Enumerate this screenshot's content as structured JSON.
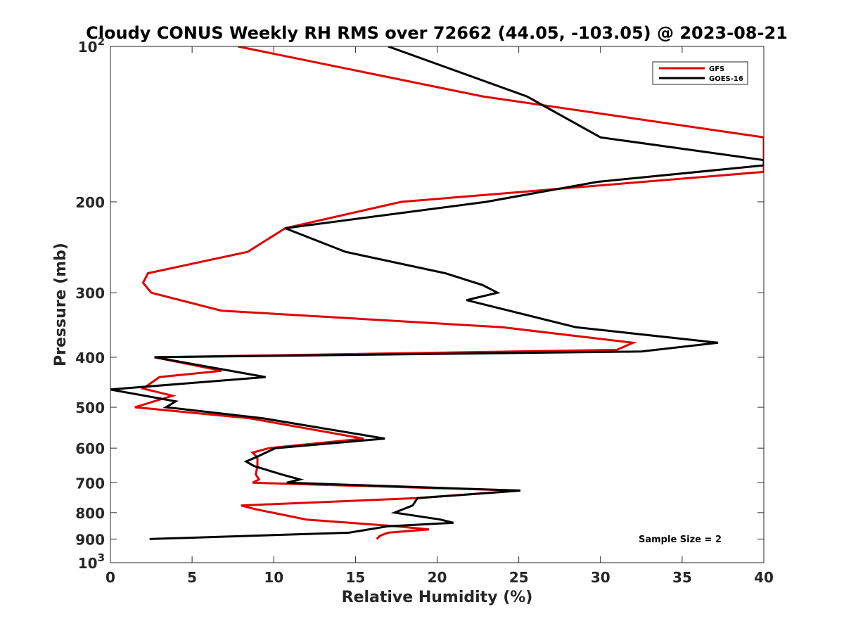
{
  "chart_data": {
    "type": "line",
    "title": "Cloudy CONUS Weekly RH RMS over 72662 (44.05, -103.05) @ 2023-08-21",
    "xlabel": "Relative Humidity (%)",
    "ylabel": "Pressure (mb)",
    "xlim": [
      0,
      40
    ],
    "ylim": [
      100,
      1000
    ],
    "y_scale": "log",
    "y_reversed": true,
    "grid": false,
    "legend_position": "top-right",
    "x_ticks": [
      0,
      5,
      10,
      15,
      20,
      25,
      30,
      35,
      40
    ],
    "x_tick_labels": [
      "0",
      "5",
      "10",
      "15",
      "20",
      "25",
      "30",
      "35",
      "40"
    ],
    "y_ticks": [
      100,
      200,
      300,
      400,
      500,
      600,
      700,
      800,
      900,
      1000
    ],
    "y_tick_labels": [
      {
        "base": "10",
        "exp": "2"
      },
      {
        "base": "200",
        "exp": ""
      },
      {
        "base": "300",
        "exp": ""
      },
      {
        "base": "400",
        "exp": ""
      },
      {
        "base": "500",
        "exp": ""
      },
      {
        "base": "600",
        "exp": ""
      },
      {
        "base": "700",
        "exp": ""
      },
      {
        "base": "800",
        "exp": ""
      },
      {
        "base": "900",
        "exp": ""
      },
      {
        "base": "10",
        "exp": "3"
      }
    ],
    "series": [
      {
        "name": "GFS",
        "color": "#e00000",
        "points": [
          [
            7.8,
            100
          ],
          [
            22.8,
            125
          ],
          [
            40.0,
            150
          ],
          [
            40.0,
            175
          ],
          [
            17.8,
            200
          ],
          [
            10.7,
            225
          ],
          [
            8.4,
            250
          ],
          [
            2.3,
            275
          ],
          [
            2.0,
            287
          ],
          [
            2.5,
            300
          ],
          [
            6.8,
            325
          ],
          [
            24.0,
            350
          ],
          [
            32.0,
            375
          ],
          [
            31.0,
            387
          ],
          [
            2.7,
            400
          ],
          [
            6.8,
            425
          ],
          [
            3.0,
            437
          ],
          [
            2.0,
            460
          ],
          [
            3.8,
            475
          ],
          [
            1.5,
            500
          ],
          [
            8.5,
            525
          ],
          [
            15.5,
            575
          ],
          [
            9.7,
            600
          ],
          [
            8.7,
            612
          ],
          [
            9.0,
            625
          ],
          [
            9.0,
            650
          ],
          [
            8.9,
            675
          ],
          [
            9.1,
            690
          ],
          [
            8.7,
            700
          ],
          [
            25.1,
            725
          ],
          [
            18.7,
            750
          ],
          [
            8.0,
            775
          ],
          [
            8.8,
            787
          ],
          [
            12.0,
            825
          ],
          [
            17.5,
            850
          ],
          [
            19.5,
            862
          ],
          [
            17.0,
            875
          ],
          [
            16.5,
            887
          ],
          [
            16.3,
            900
          ]
        ]
      },
      {
        "name": "GOES-16",
        "color": "#000000",
        "points": [
          [
            17.0,
            100
          ],
          [
            25.5,
            125
          ],
          [
            30.0,
            150
          ],
          [
            40.0,
            166
          ],
          [
            40.0,
            170
          ],
          [
            29.8,
            183
          ],
          [
            23.0,
            200
          ],
          [
            10.7,
            225
          ],
          [
            14.4,
            250
          ],
          [
            20.5,
            275
          ],
          [
            22.8,
            290
          ],
          [
            23.7,
            300
          ],
          [
            21.8,
            310
          ],
          [
            28.5,
            350
          ],
          [
            37.2,
            375
          ],
          [
            32.5,
            390
          ],
          [
            2.7,
            400
          ],
          [
            9.5,
            437
          ],
          [
            0.0,
            462
          ],
          [
            4.0,
            487
          ],
          [
            3.4,
            500
          ],
          [
            9.3,
            525
          ],
          [
            16.8,
            575
          ],
          [
            10.1,
            600
          ],
          [
            8.9,
            625
          ],
          [
            8.3,
            637
          ],
          [
            8.8,
            650
          ],
          [
            10.5,
            675
          ],
          [
            11.6,
            690
          ],
          [
            10.8,
            700
          ],
          [
            25.1,
            725
          ],
          [
            18.8,
            750
          ],
          [
            18.5,
            775
          ],
          [
            17.4,
            800
          ],
          [
            20.2,
            825
          ],
          [
            21.0,
            837
          ],
          [
            17.0,
            850
          ],
          [
            14.6,
            875
          ],
          [
            2.4,
            900
          ]
        ]
      }
    ],
    "annotations": [
      "Sample Size = 2"
    ]
  }
}
